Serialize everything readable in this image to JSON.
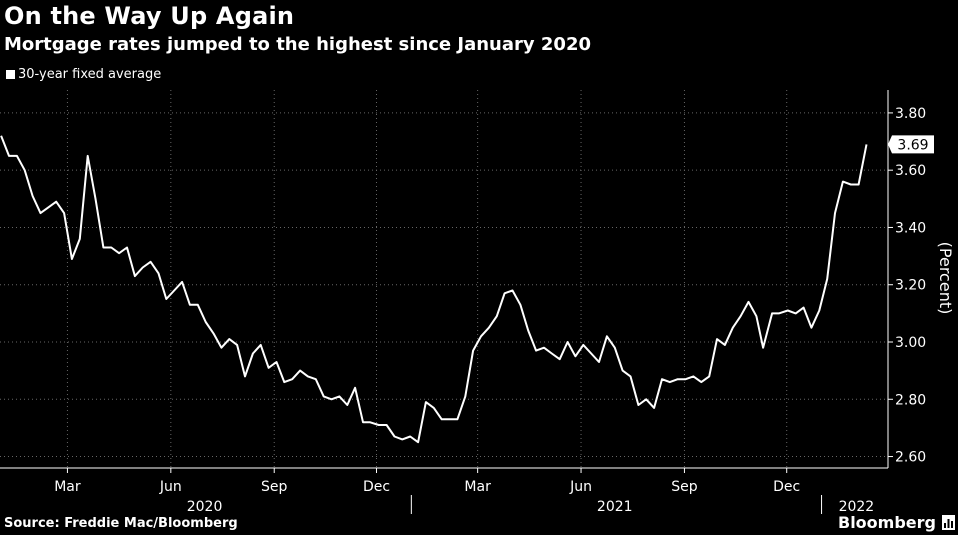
{
  "title": "On the Way Up Again",
  "subtitle": "Mortgage rates jumped to the highest since January 2020",
  "legend_label": "30-year fixed average",
  "source": "Source: Freddie Mac/Bloomberg",
  "brand": "Bloomberg",
  "colors": {
    "background": "#000000",
    "line": "#ffffff",
    "grid": "#666666"
  },
  "chart_data": {
    "type": "line",
    "title": "On the Way Up Again",
    "subtitle": "Mortgage rates jumped to the highest since January 2020",
    "ylabel": "(Percent)",
    "ylim": [
      2.6,
      3.8
    ],
    "yticks": [
      "3.80",
      "3.60",
      "3.40",
      "3.20",
      "3.00",
      "2.80",
      "2.60"
    ],
    "y_axis_position": "right",
    "grid": true,
    "legend_position": "top-left",
    "month_ticks": [
      "Mar",
      "Jun",
      "Sep",
      "Dec",
      "Mar",
      "Jun",
      "Sep",
      "Dec"
    ],
    "year_labels": [
      "2020",
      "2021",
      "2022"
    ],
    "last_value_label": "3.69",
    "series": [
      {
        "name": "30-year fixed average",
        "x": [
          "2020-01-02",
          "2020-01-09",
          "2020-01-16",
          "2020-01-23",
          "2020-01-30",
          "2020-02-06",
          "2020-02-13",
          "2020-02-20",
          "2020-02-27",
          "2020-03-05",
          "2020-03-12",
          "2020-03-19",
          "2020-03-26",
          "2020-04-02",
          "2020-04-09",
          "2020-04-16",
          "2020-04-23",
          "2020-04-30",
          "2020-05-07",
          "2020-05-14",
          "2020-05-21",
          "2020-05-28",
          "2020-06-04",
          "2020-06-11",
          "2020-06-18",
          "2020-06-25",
          "2020-07-02",
          "2020-07-09",
          "2020-07-16",
          "2020-07-23",
          "2020-07-30",
          "2020-08-06",
          "2020-08-13",
          "2020-08-20",
          "2020-08-27",
          "2020-09-03",
          "2020-09-10",
          "2020-09-17",
          "2020-09-24",
          "2020-10-01",
          "2020-10-08",
          "2020-10-15",
          "2020-10-22",
          "2020-10-29",
          "2020-11-05",
          "2020-11-12",
          "2020-11-19",
          "2020-11-25",
          "2020-12-03",
          "2020-12-10",
          "2020-12-17",
          "2020-12-24",
          "2020-12-31",
          "2021-01-07",
          "2021-01-14",
          "2021-01-21",
          "2021-01-28",
          "2021-02-04",
          "2021-02-11",
          "2021-02-18",
          "2021-02-25",
          "2021-03-04",
          "2021-03-11",
          "2021-03-18",
          "2021-03-25",
          "2021-04-01",
          "2021-04-08",
          "2021-04-15",
          "2021-04-22",
          "2021-04-29",
          "2021-05-06",
          "2021-05-13",
          "2021-05-20",
          "2021-05-27",
          "2021-06-03",
          "2021-06-10",
          "2021-06-17",
          "2021-06-24",
          "2021-07-01",
          "2021-07-08",
          "2021-07-15",
          "2021-07-22",
          "2021-07-29",
          "2021-08-05",
          "2021-08-12",
          "2021-08-19",
          "2021-08-26",
          "2021-09-02",
          "2021-09-09",
          "2021-09-16",
          "2021-09-23",
          "2021-09-30",
          "2021-10-07",
          "2021-10-14",
          "2021-10-21",
          "2021-10-28",
          "2021-11-04",
          "2021-11-10",
          "2021-11-18",
          "2021-11-24",
          "2021-12-02",
          "2021-12-09",
          "2021-12-16",
          "2021-12-23",
          "2021-12-30",
          "2022-01-06",
          "2022-01-13",
          "2022-01-20",
          "2022-01-27",
          "2022-02-03",
          "2022-02-10"
        ],
        "values": [
          3.72,
          3.65,
          3.65,
          3.6,
          3.51,
          3.45,
          3.47,
          3.49,
          3.45,
          3.29,
          3.36,
          3.65,
          3.5,
          3.33,
          3.33,
          3.31,
          3.33,
          3.23,
          3.26,
          3.28,
          3.24,
          3.15,
          3.18,
          3.21,
          3.13,
          3.13,
          3.07,
          3.03,
          2.98,
          3.01,
          2.99,
          2.88,
          2.96,
          2.99,
          2.91,
          2.93,
          2.86,
          2.87,
          2.9,
          2.88,
          2.87,
          2.81,
          2.8,
          2.81,
          2.78,
          2.84,
          2.72,
          2.72,
          2.71,
          2.71,
          2.67,
          2.66,
          2.67,
          2.65,
          2.79,
          2.77,
          2.73,
          2.73,
          2.73,
          2.81,
          2.97,
          3.02,
          3.05,
          3.09,
          3.17,
          3.18,
          3.13,
          3.04,
          2.97,
          2.98,
          2.96,
          2.94,
          3.0,
          2.95,
          2.99,
          2.96,
          2.93,
          3.02,
          2.98,
          2.9,
          2.88,
          2.78,
          2.8,
          2.77,
          2.87,
          2.86,
          2.87,
          2.87,
          2.88,
          2.86,
          2.88,
          3.01,
          2.99,
          3.05,
          3.09,
          3.14,
          3.09,
          2.98,
          3.1,
          3.1,
          3.11,
          3.1,
          3.12,
          3.05,
          3.11,
          3.22,
          3.45,
          3.56,
          3.55,
          3.55,
          3.69
        ]
      }
    ]
  }
}
